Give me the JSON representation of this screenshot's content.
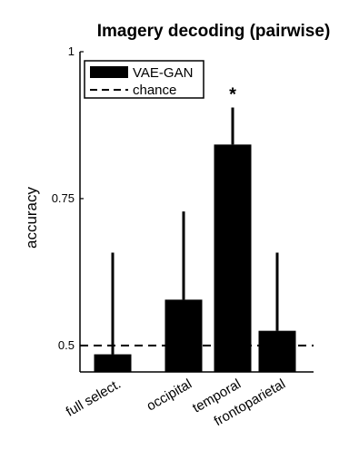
{
  "chart_data": {
    "type": "bar",
    "title": "Imagery decoding (pairwise)",
    "ylabel": "accuracy",
    "xlabel": "",
    "categories": [
      "full select.",
      "occipital",
      "temporal",
      "frontoparietal"
    ],
    "series": [
      {
        "name": "VAE-GAN",
        "values": [
          0.485,
          0.578,
          0.842,
          0.525
        ],
        "error_upper": [
          0.658,
          0.728,
          0.905,
          0.658
        ]
      }
    ],
    "reference_lines": [
      {
        "name": "chance",
        "value": 0.5,
        "style": "dashed"
      }
    ],
    "significance_markers": [
      {
        "category": "temporal",
        "label": "*"
      }
    ],
    "yticks": [
      {
        "value": 0.5,
        "label": "0.5"
      },
      {
        "value": 0.75,
        "label": "0.75"
      },
      {
        "value": 1,
        "label": "1"
      }
    ],
    "ylim": [
      0.455,
      1.0
    ],
    "legend_position": "top-left",
    "grid": false,
    "bar_color": "#000000"
  }
}
